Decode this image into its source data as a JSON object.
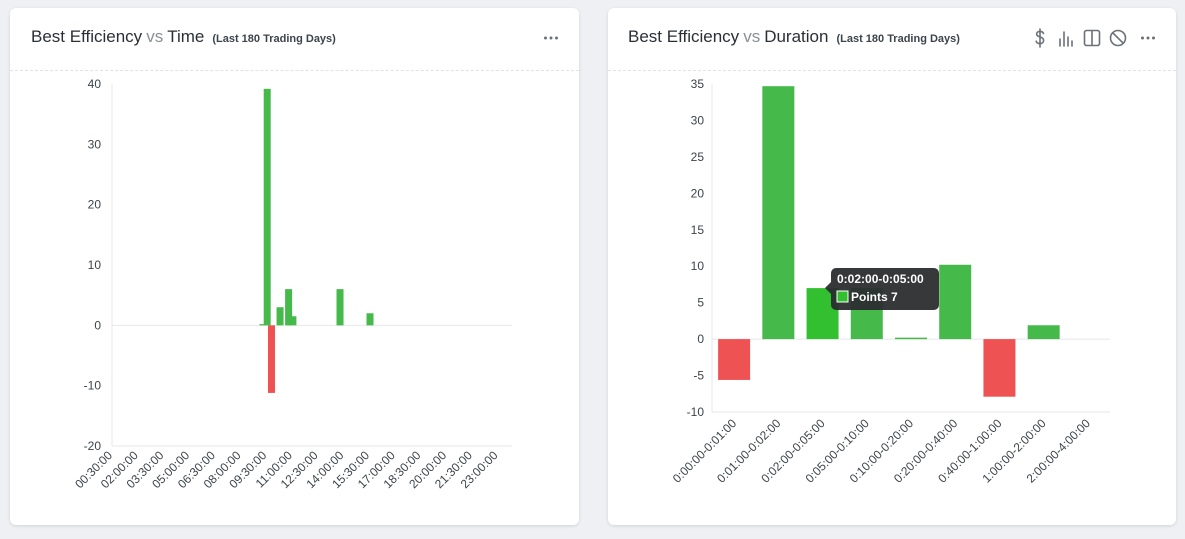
{
  "colors": {
    "positive": "#45b94a",
    "negative": "#ee5253",
    "highlight": "#33c030",
    "tooltip_bg": "#2b2d2f"
  },
  "panels": [
    {
      "title_left": "Best Efficiency",
      "vs": "vs",
      "title_right": "Time",
      "subtitle": "(Last 180 Trading Days)",
      "menu_icon": "more-horizontal-icon"
    },
    {
      "title_left": "Best Efficiency",
      "vs": "vs",
      "title_right": "Duration",
      "subtitle": "(Last 180 Trading Days)",
      "menu_icon": "more-horizontal-icon",
      "toolbar_icons": [
        "dollar-icon",
        "bar-chart-icon",
        "columns-icon",
        "ban-icon"
      ]
    }
  ],
  "chart_data": [
    {
      "type": "bar",
      "title": "Best Efficiency vs Time",
      "ylim": [
        -20,
        40
      ],
      "yticks": [
        -20,
        -10,
        0,
        10,
        20,
        30,
        40
      ],
      "x_tick_labels": [
        "00:30:00",
        "02:00:00",
        "03:30:00",
        "05:00:00",
        "06:30:00",
        "08:00:00",
        "09:30:00",
        "11:00:00",
        "12:30:00",
        "14:00:00",
        "15:30:00",
        "17:00:00",
        "18:30:00",
        "20:00:00",
        "21:30:00",
        "23:00:00"
      ],
      "x": [
        "09:15:00",
        "09:30:00",
        "09:45:00",
        "10:15:00",
        "10:45:00",
        "11:00:00",
        "13:45:00",
        "15:30:00"
      ],
      "values": [
        0.2,
        39.2,
        -11.2,
        3,
        6,
        1.5,
        6,
        2
      ],
      "grid": false
    },
    {
      "type": "bar",
      "title": "Best Efficiency vs Duration",
      "ylim": [
        -10,
        35
      ],
      "yticks": [
        -10,
        -5,
        0,
        5,
        10,
        15,
        20,
        25,
        30,
        35
      ],
      "categories": [
        "0:00:00-0:01:00",
        "0:01:00-0:02:00",
        "0:02:00-0:05:00",
        "0:05:00-0:10:00",
        "0:10:00-0:20:00",
        "0:20:00-0:40:00",
        "0:40:00-1:00:00",
        "1:00:00-2:00:00",
        "2:00:00-4:00:00"
      ],
      "values": [
        -5.6,
        34.7,
        7,
        7,
        0.2,
        10.2,
        -7.9,
        1.9,
        0
      ],
      "grid": false,
      "tooltip": {
        "category": "0:02:00-0:05:00",
        "label": "Points",
        "value": "7"
      }
    }
  ]
}
